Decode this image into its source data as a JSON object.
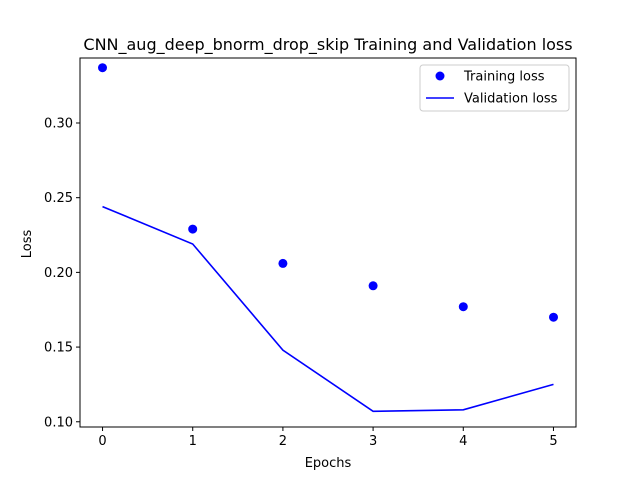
{
  "chart_data": {
    "type": "line",
    "title": "CNN_aug_deep_bnorm_drop_skip Training and Validation loss",
    "xlabel": "Epochs",
    "ylabel": "Loss",
    "xlim": [
      -0.25,
      5.25
    ],
    "ylim": [
      0.0965,
      0.3435
    ],
    "x_ticks": [
      0,
      1,
      2,
      3,
      4,
      5
    ],
    "x_tick_labels": [
      "0",
      "1",
      "2",
      "3",
      "4",
      "5"
    ],
    "y_ticks": [
      0.1,
      0.15,
      0.2,
      0.25,
      0.3
    ],
    "y_tick_labels": [
      "0.10",
      "0.15",
      "0.20",
      "0.25",
      "0.30"
    ],
    "grid": false,
    "legend_position": "top-right",
    "series": [
      {
        "name": "Training loss",
        "style": "markers",
        "color": "#0000ff",
        "x": [
          0,
          1,
          2,
          3,
          4,
          5
        ],
        "values": [
          0.337,
          0.229,
          0.206,
          0.191,
          0.177,
          0.17
        ]
      },
      {
        "name": "Validation loss",
        "style": "line",
        "color": "#0000ff",
        "x": [
          0,
          1,
          2,
          3,
          4,
          5
        ],
        "values": [
          0.244,
          0.219,
          0.148,
          0.107,
          0.108,
          0.125
        ]
      }
    ]
  }
}
